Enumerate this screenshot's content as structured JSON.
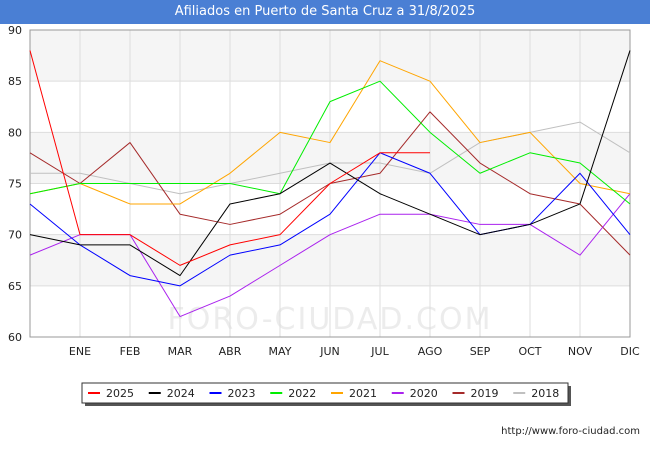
{
  "title": "Afiliados en Puerto de Santa Cruz a 31/8/2025",
  "source_url": "http://www.foro-ciudad.com",
  "watermark": "FORO-CIUDAD.COM",
  "chart_data": {
    "type": "line",
    "title": "Afiliados en Puerto de Santa Cruz a 31/8/2025",
    "x_tick_labels": [
      "ENE",
      "FEB",
      "MAR",
      "ABR",
      "MAY",
      "JUN",
      "JUL",
      "AGO",
      "SEP",
      "OCT",
      "NOV",
      "DIC"
    ],
    "ylim": [
      60,
      90
    ],
    "y_ticks": [
      60,
      65,
      70,
      75,
      80,
      85,
      90
    ],
    "grid": true,
    "legend_position": "bottom",
    "series": [
      {
        "name": "2025",
        "color": "#ff0000",
        "values": [
          88,
          70,
          70,
          67,
          69,
          70,
          75,
          78,
          78
        ]
      },
      {
        "name": "2024",
        "color": "#000000",
        "values": [
          70,
          69,
          69,
          66,
          73,
          74,
          77,
          74,
          72,
          70,
          71,
          73,
          88
        ]
      },
      {
        "name": "2023",
        "color": "#0000ff",
        "values": [
          73,
          69,
          66,
          65,
          68,
          69,
          72,
          78,
          76,
          70,
          71,
          76,
          70
        ]
      },
      {
        "name": "2022",
        "color": "#00ee00",
        "values": [
          74,
          75,
          75,
          75,
          75,
          74,
          83,
          85,
          80,
          76,
          78,
          77,
          73
        ]
      },
      {
        "name": "2021",
        "color": "#ffa500",
        "values": [
          74,
          75,
          73,
          73,
          76,
          80,
          79,
          87,
          85,
          79,
          80,
          75,
          74
        ]
      },
      {
        "name": "2020",
        "color": "#aa22ee",
        "values": [
          68,
          70,
          70,
          62,
          64,
          67,
          70,
          72,
          72,
          71,
          71,
          68,
          74
        ]
      },
      {
        "name": "2019",
        "color": "#a52a2a",
        "values": [
          78,
          75,
          79,
          72,
          71,
          72,
          75,
          76,
          82,
          77,
          74,
          73,
          68
        ]
      },
      {
        "name": "2018",
        "color": "#c0c0c0",
        "values": [
          76,
          76,
          75,
          74,
          75,
          76,
          77,
          77,
          76,
          79,
          80,
          81,
          78
        ]
      }
    ]
  }
}
